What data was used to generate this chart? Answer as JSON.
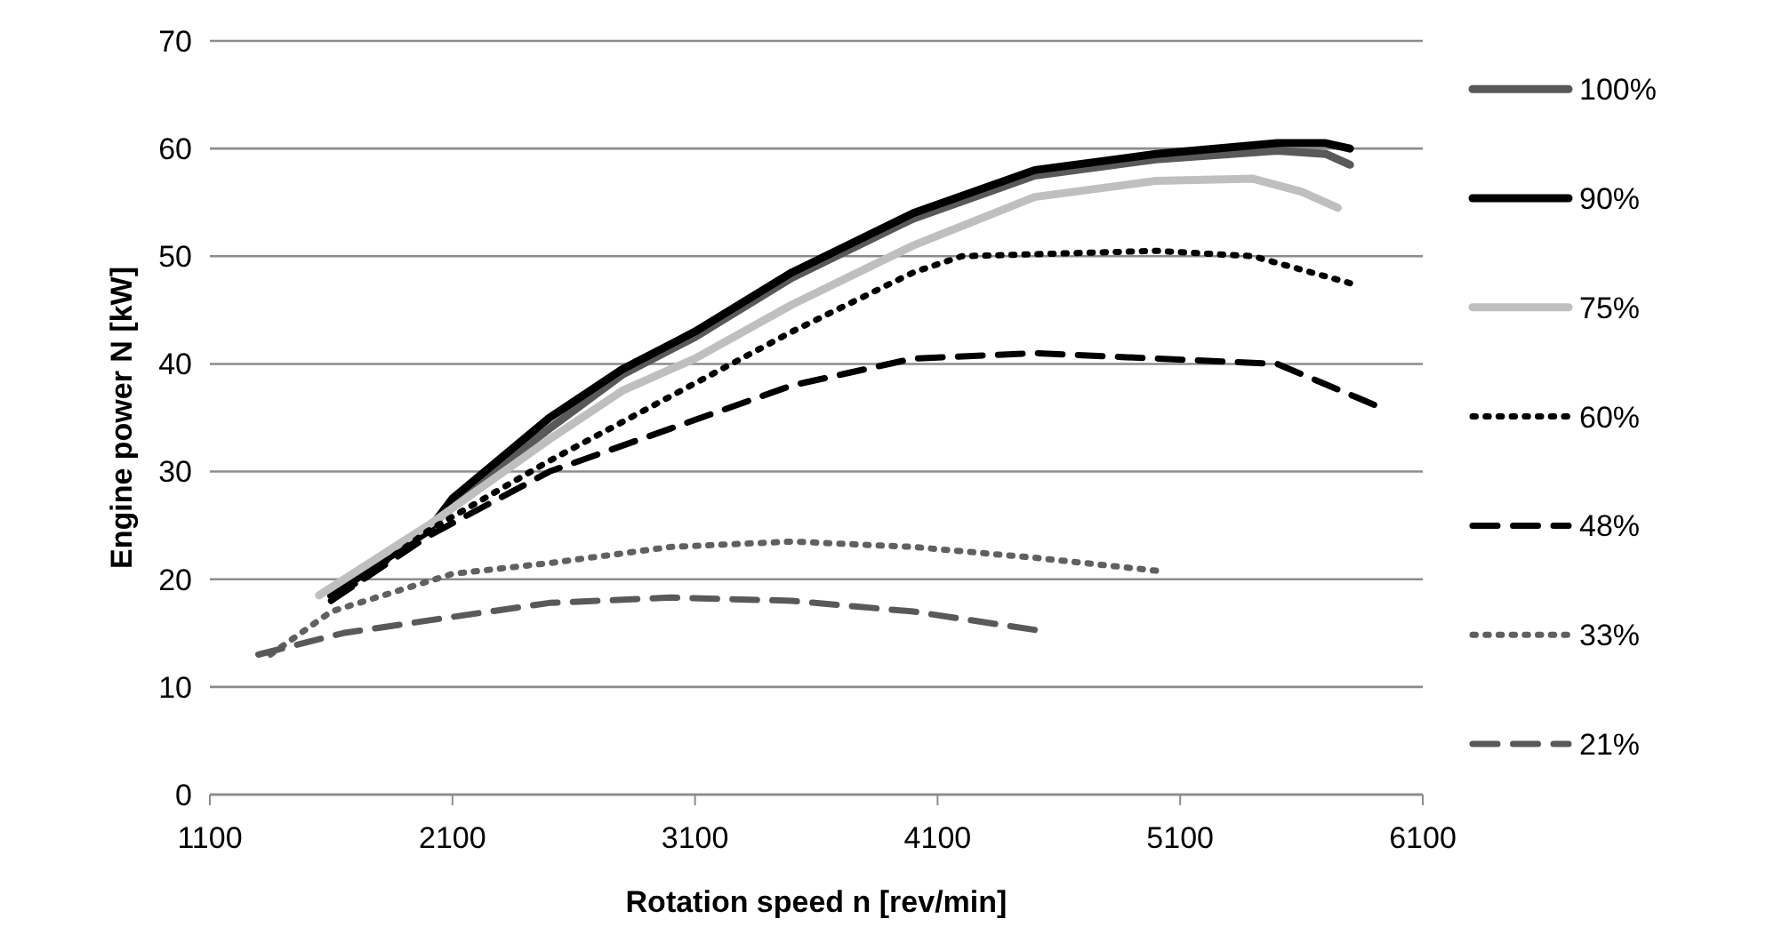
{
  "chart_data": {
    "type": "line",
    "xlabel": "Rotation speed n [rev/min]",
    "ylabel": "Engine power N [kW]",
    "xlim": [
      1100,
      6100
    ],
    "xticks": [
      1100,
      2100,
      3100,
      4100,
      5100,
      6100
    ],
    "ylim": [
      0,
      70
    ],
    "yticks": [
      0,
      10,
      20,
      30,
      40,
      50,
      60,
      70
    ],
    "grid": "y",
    "legend": "right",
    "series": [
      {
        "name": "100%",
        "color": "#595959",
        "line_style": "solid",
        "x": [
          1600,
          2000,
          2100,
          2500,
          2800,
          3100,
          3500,
          4000,
          4500,
          5000,
          5500,
          5700,
          5800
        ],
        "values": [
          19,
          24.5,
          27,
          34,
          39,
          42.5,
          48,
          53.5,
          57.5,
          59,
          59.8,
          59.5,
          58.5
        ]
      },
      {
        "name": "90%",
        "color": "#000000",
        "line_style": "solid",
        "x": [
          1600,
          2000,
          2100,
          2500,
          2800,
          3100,
          3500,
          4000,
          4500,
          5000,
          5500,
          5700,
          5800
        ],
        "values": [
          18.5,
          24.5,
          27.5,
          35,
          39.5,
          43,
          48.5,
          54,
          58,
          59.5,
          60.5,
          60.5,
          60
        ]
      },
      {
        "name": "75%",
        "color": "#bfbfbf",
        "line_style": "solid",
        "x": [
          1550,
          2000,
          2500,
          2800,
          3100,
          3500,
          4000,
          4500,
          5000,
          5400,
          5600,
          5750
        ],
        "values": [
          18.5,
          25,
          33,
          37.5,
          40.5,
          45.5,
          51,
          55.5,
          57,
          57.2,
          56,
          54.5
        ]
      },
      {
        "name": "60%",
        "color": "#000000",
        "line_style": "dotted",
        "x": [
          1600,
          2000,
          2500,
          3000,
          3500,
          4000,
          4200,
          5000,
          5400,
          5800
        ],
        "values": [
          18,
          24.5,
          31,
          37,
          43,
          48.5,
          50,
          50.5,
          50,
          47.5
        ]
      },
      {
        "name": "48%",
        "color": "#000000",
        "line_style": "dashed",
        "x": [
          1600,
          2000,
          2500,
          3000,
          3500,
          4000,
          4500,
          5000,
          5500,
          5900
        ],
        "values": [
          18,
          24,
          30,
          34,
          38,
          40.5,
          41,
          40.5,
          40,
          36.2
        ]
      },
      {
        "name": "33%",
        "color": "#606060",
        "line_style": "dotted",
        "x": [
          1350,
          1600,
          2100,
          2500,
          3000,
          3500,
          4000,
          4500,
          5000
        ],
        "values": [
          13,
          17,
          20.5,
          21.5,
          23,
          23.5,
          23,
          22,
          20.8
        ]
      },
      {
        "name": "21%",
        "color": "#595959",
        "line_style": "dashed",
        "x": [
          1300,
          1650,
          2100,
          2500,
          3000,
          3500,
          4000,
          4500
        ],
        "values": [
          13,
          15,
          16.5,
          17.8,
          18.3,
          18,
          17,
          15.3
        ]
      }
    ]
  }
}
